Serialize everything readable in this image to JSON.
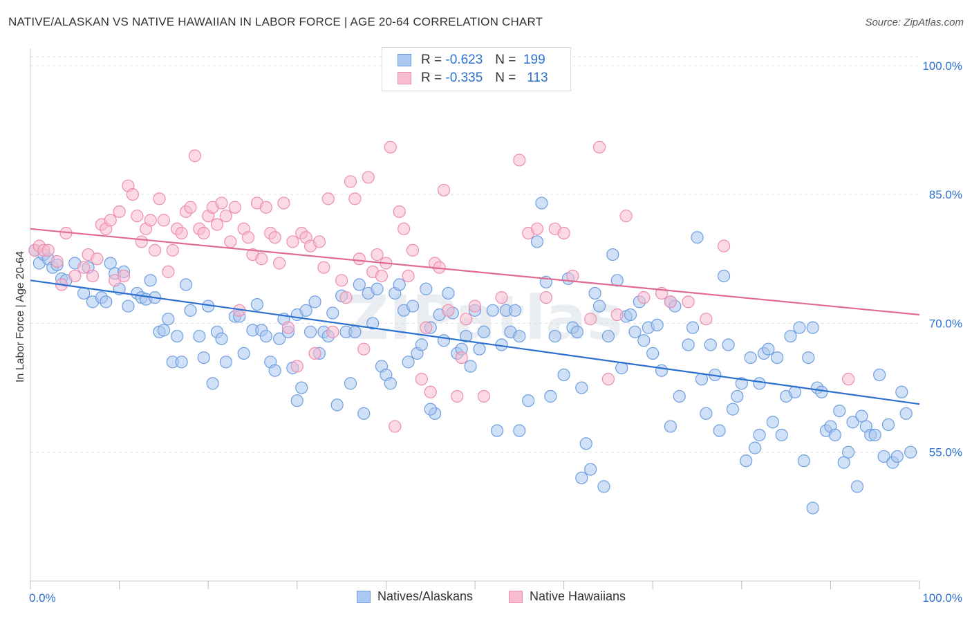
{
  "title": "NATIVE/ALASKAN VS NATIVE HAWAIIAN IN LABOR FORCE | AGE 20-64 CORRELATION CHART",
  "source": "Source: ZipAtlas.com",
  "watermark": "ZIPatlas",
  "legend": {
    "r_label": "R =",
    "n_label": "N =",
    "rows": [
      {
        "r": "-0.623",
        "n": "199",
        "fill": "#aac8f0",
        "stroke": "#6f9fe0"
      },
      {
        "r": "-0.335",
        "n": "113",
        "fill": "#f8bcd0",
        "stroke": "#ee8fb0"
      }
    ]
  },
  "bottom_legend": [
    {
      "label": "Natives/Alaskans",
      "fill": "#aac8f0",
      "stroke": "#6f9fe0"
    },
    {
      "label": "Native Hawaiians",
      "fill": "#f8bcd0",
      "stroke": "#ee8fb0"
    }
  ],
  "colors": {
    "blue_fill": "#a9c7ef",
    "blue_stroke": "#6e9ee0",
    "blue_line": "#2b6fcf",
    "pink_fill": "#f7bccf",
    "pink_stroke": "#ec8db0",
    "pink_line": "#e06a94"
  },
  "chart_data": {
    "type": "scatter",
    "ylabel": "In Labor Force | Age 20-64",
    "xlim": [
      0,
      100
    ],
    "ylim": [
      40,
      102
    ],
    "x_tick_labels": [
      "0.0%",
      "100.0%"
    ],
    "y_ticks": [
      55,
      70,
      85,
      100
    ],
    "y_tick_labels": [
      "55.0%",
      "70.0%",
      "85.0%",
      "100.0%"
    ],
    "grid": true,
    "series": [
      {
        "name": "Natives/Alaskans",
        "trend": {
          "x": [
            0,
            100
          ],
          "y": [
            75.0,
            60.6
          ]
        },
        "points": [
          [
            0.5,
            78.5
          ],
          [
            1,
            77
          ],
          [
            1.5,
            78
          ],
          [
            2,
            77.5
          ],
          [
            2.5,
            76.5
          ],
          [
            3,
            76.8
          ],
          [
            3.5,
            75.2
          ],
          [
            4,
            75
          ],
          [
            5,
            77
          ],
          [
            6,
            73.5
          ],
          [
            6.5,
            76.5
          ],
          [
            7,
            72.5
          ],
          [
            8,
            73
          ],
          [
            8.5,
            72.5
          ],
          [
            9,
            77
          ],
          [
            9.5,
            75.8
          ],
          [
            10,
            74
          ],
          [
            10.5,
            76
          ],
          [
            11,
            72
          ],
          [
            12,
            73.5
          ],
          [
            12.5,
            73
          ],
          [
            13,
            72.8
          ],
          [
            13.5,
            75
          ],
          [
            14,
            73
          ],
          [
            14.5,
            69
          ],
          [
            15,
            69.2
          ],
          [
            15.5,
            70.5
          ],
          [
            16,
            65.5
          ],
          [
            16.5,
            68.5
          ],
          [
            17,
            65.5
          ],
          [
            17.5,
            74.5
          ],
          [
            18,
            71.5
          ],
          [
            19,
            68.5
          ],
          [
            19.5,
            66
          ],
          [
            20,
            72
          ],
          [
            20.5,
            63
          ],
          [
            21,
            69
          ],
          [
            21.5,
            68.2
          ],
          [
            22,
            65.5
          ],
          [
            23,
            70.8
          ],
          [
            23.5,
            70.8
          ],
          [
            24,
            66.5
          ],
          [
            25,
            69.2
          ],
          [
            25.5,
            72.2
          ],
          [
            26,
            69.2
          ],
          [
            26.5,
            68.5
          ],
          [
            27,
            65.5
          ],
          [
            27.5,
            64.5
          ],
          [
            28,
            68.2
          ],
          [
            28.5,
            70.5
          ],
          [
            29,
            69
          ],
          [
            29.5,
            64.8
          ],
          [
            30,
            71
          ],
          [
            30.5,
            62.5
          ],
          [
            31,
            71.5
          ],
          [
            31.5,
            69
          ],
          [
            32,
            72.5
          ],
          [
            32.5,
            66.5
          ],
          [
            33,
            69
          ],
          [
            33.5,
            68.5
          ],
          [
            34,
            71.2
          ],
          [
            34.5,
            60.5
          ],
          [
            35,
            73.2
          ],
          [
            35.5,
            69
          ],
          [
            36,
            63
          ],
          [
            36.5,
            69
          ],
          [
            37,
            74.5
          ],
          [
            37.5,
            59.5
          ],
          [
            38,
            73.5
          ],
          [
            38.5,
            70
          ],
          [
            39,
            74
          ],
          [
            39.5,
            65
          ],
          [
            40,
            64
          ],
          [
            40.5,
            63
          ],
          [
            41,
            73.5
          ],
          [
            41.5,
            74.5
          ],
          [
            42,
            71.5
          ],
          [
            42.5,
            65.5
          ],
          [
            43,
            72
          ],
          [
            43.5,
            66.5
          ],
          [
            44,
            67.5
          ],
          [
            44.5,
            74
          ],
          [
            45,
            69.5
          ],
          [
            45.5,
            59.5
          ],
          [
            46,
            71
          ],
          [
            46.5,
            68
          ],
          [
            47,
            73.5
          ],
          [
            47.5,
            71.2
          ],
          [
            48,
            66.5
          ],
          [
            48.5,
            67
          ],
          [
            49,
            68.5
          ],
          [
            49.5,
            65
          ],
          [
            50,
            71.5
          ],
          [
            50.5,
            67
          ],
          [
            51,
            69
          ],
          [
            52,
            71.5
          ],
          [
            52.5,
            57.5
          ],
          [
            53,
            67.5
          ],
          [
            53.5,
            71.5
          ],
          [
            54,
            69
          ],
          [
            54.5,
            71.5
          ],
          [
            55,
            68.5
          ],
          [
            56,
            61
          ],
          [
            57,
            79.5
          ],
          [
            57.5,
            84
          ],
          [
            58,
            74.8
          ],
          [
            58.5,
            61.5
          ],
          [
            59,
            68.5
          ],
          [
            60,
            64
          ],
          [
            60.5,
            75.2
          ],
          [
            61,
            69.5
          ],
          [
            61.5,
            69
          ],
          [
            62,
            62.5
          ],
          [
            62.5,
            56
          ],
          [
            63,
            53
          ],
          [
            63.5,
            73.5
          ],
          [
            64,
            72
          ],
          [
            64.5,
            51
          ],
          [
            65,
            68.5
          ],
          [
            65.5,
            78
          ],
          [
            66,
            75
          ],
          [
            66.5,
            64.8
          ],
          [
            67,
            70.8
          ],
          [
            67.5,
            71
          ],
          [
            68,
            69
          ],
          [
            68.5,
            72.5
          ],
          [
            69,
            68
          ],
          [
            69.5,
            69.5
          ],
          [
            70,
            66.5
          ],
          [
            70.5,
            69.8
          ],
          [
            71,
            64.5
          ],
          [
            72,
            72.5
          ],
          [
            72.5,
            72
          ],
          [
            73,
            61.5
          ],
          [
            74,
            67.5
          ],
          [
            74.5,
            69.5
          ],
          [
            75,
            80
          ],
          [
            75.5,
            63.5
          ],
          [
            76,
            59.5
          ],
          [
            76.5,
            67.5
          ],
          [
            77,
            64
          ],
          [
            77.5,
            57.5
          ],
          [
            78,
            75.5
          ],
          [
            78.5,
            67.5
          ],
          [
            79,
            60
          ],
          [
            79.5,
            61.5
          ],
          [
            80,
            63
          ],
          [
            80.5,
            54
          ],
          [
            81,
            66
          ],
          [
            81.5,
            55.5
          ],
          [
            82,
            63
          ],
          [
            82.5,
            66.5
          ],
          [
            83,
            67
          ],
          [
            83.5,
            58.5
          ],
          [
            84,
            66
          ],
          [
            84.5,
            57
          ],
          [
            85,
            61.5
          ],
          [
            85.5,
            68.5
          ],
          [
            86,
            62
          ],
          [
            86.5,
            69.5
          ],
          [
            87,
            54
          ],
          [
            87.5,
            66
          ],
          [
            88,
            69.5
          ],
          [
            88.5,
            62.5
          ],
          [
            89,
            62
          ],
          [
            89.5,
            57.5
          ],
          [
            90,
            58
          ],
          [
            90.5,
            57
          ],
          [
            91,
            59.8
          ],
          [
            91.5,
            53.8
          ],
          [
            92,
            55
          ],
          [
            92.5,
            58.5
          ],
          [
            93,
            51
          ],
          [
            93.5,
            59.2
          ],
          [
            94,
            58
          ],
          [
            94.5,
            57
          ],
          [
            95,
            57
          ],
          [
            95.5,
            64
          ],
          [
            96,
            54.5
          ],
          [
            96.5,
            58.2
          ],
          [
            97,
            53.8
          ],
          [
            97.5,
            54.5
          ],
          [
            98,
            62
          ],
          [
            98.5,
            59.5
          ],
          [
            99,
            55
          ],
          [
            30,
            61
          ],
          [
            45,
            60
          ],
          [
            55,
            57.5
          ],
          [
            62,
            52
          ],
          [
            72,
            58
          ],
          [
            82,
            57
          ],
          [
            88,
            48.5
          ]
        ]
      },
      {
        "name": "Native Hawaiians",
        "trend": {
          "x": [
            0,
            100
          ],
          "y": [
            81.0,
            71.0
          ]
        },
        "points": [
          [
            0.5,
            78.5
          ],
          [
            1,
            79
          ],
          [
            1.5,
            78.5
          ],
          [
            2,
            78.5
          ],
          [
            3,
            77.2
          ],
          [
            3.5,
            74.5
          ],
          [
            4,
            80.5
          ],
          [
            5,
            75.5
          ],
          [
            6,
            76.5
          ],
          [
            6.5,
            78
          ],
          [
            7,
            75.5
          ],
          [
            7.5,
            77.5
          ],
          [
            8,
            81.5
          ],
          [
            8.5,
            81
          ],
          [
            9,
            82
          ],
          [
            9.5,
            75
          ],
          [
            10,
            83
          ],
          [
            10.5,
            75.5
          ],
          [
            11,
            86
          ],
          [
            11.5,
            85
          ],
          [
            12,
            82.5
          ],
          [
            12.5,
            79.5
          ],
          [
            13,
            81
          ],
          [
            13.5,
            82
          ],
          [
            14,
            78.5
          ],
          [
            14.5,
            84.5
          ],
          [
            15,
            82
          ],
          [
            15.5,
            76
          ],
          [
            16,
            78.5
          ],
          [
            16.5,
            81
          ],
          [
            17,
            80.5
          ],
          [
            17.5,
            83
          ],
          [
            18,
            83.5
          ],
          [
            18.5,
            89.5
          ],
          [
            19,
            81
          ],
          [
            19.5,
            80.5
          ],
          [
            20,
            82.5
          ],
          [
            20.5,
            83.5
          ],
          [
            21,
            81.5
          ],
          [
            21.5,
            84
          ],
          [
            22,
            82.5
          ],
          [
            22.5,
            79.5
          ],
          [
            23,
            83.5
          ],
          [
            23.5,
            71.5
          ],
          [
            24,
            81
          ],
          [
            24.5,
            80
          ],
          [
            25,
            78
          ],
          [
            25.5,
            84
          ],
          [
            26,
            77.5
          ],
          [
            26.5,
            83.5
          ],
          [
            27,
            80.5
          ],
          [
            27.5,
            80
          ],
          [
            28,
            77
          ],
          [
            28.5,
            84
          ],
          [
            29,
            69.5
          ],
          [
            29.5,
            79.5
          ],
          [
            30,
            65
          ],
          [
            30.5,
            80.5
          ],
          [
            31,
            80
          ],
          [
            31.5,
            79
          ],
          [
            32,
            66.5
          ],
          [
            32.5,
            79.5
          ],
          [
            33,
            76.5
          ],
          [
            33.5,
            84.5
          ],
          [
            34,
            69
          ],
          [
            35,
            75
          ],
          [
            35.5,
            73
          ],
          [
            36,
            86.5
          ],
          [
            36.5,
            84.5
          ],
          [
            37,
            77.5
          ],
          [
            37.5,
            67
          ],
          [
            38,
            87
          ],
          [
            38.5,
            76
          ],
          [
            39,
            78
          ],
          [
            39.5,
            75.5
          ],
          [
            40,
            77
          ],
          [
            40.5,
            90.5
          ],
          [
            41,
            58
          ],
          [
            41.5,
            83
          ],
          [
            42,
            81
          ],
          [
            42.5,
            75.5
          ],
          [
            43,
            78.5
          ],
          [
            44,
            63.5
          ],
          [
            44.5,
            69.5
          ],
          [
            45,
            62
          ],
          [
            45.5,
            77
          ],
          [
            46,
            76.5
          ],
          [
            46.5,
            85.5
          ],
          [
            47,
            71.5
          ],
          [
            48,
            61.5
          ],
          [
            48.5,
            66
          ],
          [
            49,
            70.5
          ],
          [
            50,
            72
          ],
          [
            51,
            61.5
          ],
          [
            53,
            73
          ],
          [
            55,
            89
          ],
          [
            56,
            80.5
          ],
          [
            57,
            81
          ],
          [
            58,
            73
          ],
          [
            59,
            81
          ],
          [
            60,
            80.5
          ],
          [
            61,
            75.5
          ],
          [
            63,
            70.5
          ],
          [
            64,
            90.5
          ],
          [
            65,
            63.5
          ],
          [
            66,
            71
          ],
          [
            67,
            82.5
          ],
          [
            69,
            73
          ],
          [
            71,
            73.5
          ],
          [
            72,
            72.5
          ],
          [
            74,
            72.5
          ],
          [
            76,
            70.5
          ],
          [
            78,
            79
          ],
          [
            92,
            63.5
          ]
        ]
      }
    ]
  }
}
